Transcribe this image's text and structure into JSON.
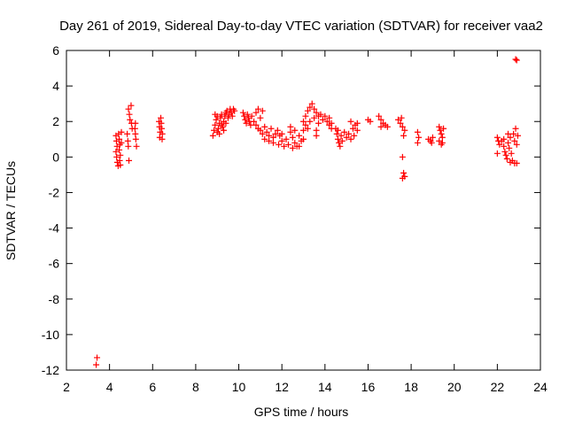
{
  "chart_data": {
    "type": "scatter",
    "title": "Day 261 of 2019, Sidereal Day-to-day VTEC variation (SDTVAR) for receiver vaa2",
    "xlabel": "GPS time / hours",
    "ylabel": "SDTVAR / TECUs",
    "xlim": [
      2,
      24
    ],
    "ylim": [
      -12,
      6
    ],
    "xticks": [
      2,
      4,
      6,
      8,
      10,
      12,
      14,
      16,
      18,
      20,
      22,
      24
    ],
    "yticks": [
      -12,
      -10,
      -8,
      -6,
      -4,
      -2,
      0,
      2,
      4,
      6
    ],
    "grid": false,
    "legend": "none",
    "marker": "plus",
    "color": "#ff0000",
    "series": [
      {
        "name": "vaa2",
        "points": [
          [
            3.42,
            -11.3
          ],
          [
            3.38,
            -11.7
          ],
          [
            4.3,
            1.2
          ],
          [
            4.32,
            0.9
          ],
          [
            4.35,
            0.6
          ],
          [
            4.3,
            0.3
          ],
          [
            4.33,
            0.0
          ],
          [
            4.36,
            -0.3
          ],
          [
            4.4,
            -0.5
          ],
          [
            4.42,
            1.3
          ],
          [
            4.45,
            1.0
          ],
          [
            4.48,
            0.7
          ],
          [
            4.45,
            0.4
          ],
          [
            4.5,
            0.1
          ],
          [
            4.47,
            -0.2
          ],
          [
            4.5,
            -0.45
          ],
          [
            4.55,
            1.4
          ],
          [
            4.55,
            0.8
          ],
          [
            4.82,
            1.3
          ],
          [
            4.85,
            0.9
          ],
          [
            4.87,
            0.6
          ],
          [
            4.9,
            -0.2
          ],
          [
            4.88,
            2.7
          ],
          [
            4.92,
            2.4
          ],
          [
            4.95,
            2.1
          ],
          [
            5.0,
            2.9
          ],
          [
            5.02,
            1.9
          ],
          [
            5.05,
            1.6
          ],
          [
            5.18,
            1.6
          ],
          [
            5.2,
            1.3
          ],
          [
            5.22,
            1.0
          ],
          [
            5.25,
            0.6
          ],
          [
            5.2,
            1.9
          ],
          [
            6.3,
            2.0
          ],
          [
            6.32,
            1.7
          ],
          [
            6.35,
            1.4
          ],
          [
            6.33,
            1.1
          ],
          [
            6.38,
            2.2
          ],
          [
            6.4,
            1.9
          ],
          [
            6.42,
            1.6
          ],
          [
            6.45,
            1.3
          ],
          [
            6.44,
            1.0
          ],
          [
            8.8,
            1.2
          ],
          [
            8.85,
            1.5
          ],
          [
            8.9,
            1.8
          ],
          [
            8.95,
            2.1
          ],
          [
            9.0,
            2.3
          ],
          [
            9.05,
            1.6
          ],
          [
            9.1,
            1.9
          ],
          [
            9.15,
            2.2
          ],
          [
            9.2,
            2.4
          ],
          [
            9.25,
            1.7
          ],
          [
            9.3,
            2.0
          ],
          [
            9.35,
            2.3
          ],
          [
            9.4,
            2.5
          ],
          [
            9.45,
            2.6
          ],
          [
            9.5,
            2.2
          ],
          [
            9.55,
            2.4
          ],
          [
            9.6,
            2.7
          ],
          [
            9.65,
            2.5
          ],
          [
            9.7,
            2.3
          ],
          [
            9.75,
            2.7
          ],
          [
            9.8,
            2.6
          ],
          [
            8.9,
            2.4
          ],
          [
            9.0,
            1.4
          ],
          [
            9.1,
            1.3
          ],
          [
            9.2,
            1.8
          ],
          [
            9.3,
            1.5
          ],
          [
            9.4,
            1.9
          ],
          [
            10.2,
            2.5
          ],
          [
            10.25,
            2.3
          ],
          [
            10.3,
            2.1
          ],
          [
            10.35,
            1.9
          ],
          [
            10.4,
            2.4
          ],
          [
            10.45,
            2.2
          ],
          [
            10.5,
            2.0
          ],
          [
            10.55,
            1.8
          ],
          [
            10.6,
            2.3
          ],
          [
            10.7,
            2.0
          ],
          [
            10.8,
            1.8
          ],
          [
            10.9,
            1.6
          ],
          [
            10.8,
            2.5
          ],
          [
            10.9,
            2.7
          ],
          [
            11.0,
            2.2
          ],
          [
            11.1,
            2.6
          ],
          [
            11.0,
            1.5
          ],
          [
            11.1,
            1.3
          ],
          [
            11.2,
            1.7
          ],
          [
            11.3,
            1.4
          ],
          [
            11.4,
            1.2
          ],
          [
            11.5,
            1.6
          ],
          [
            11.6,
            1.1
          ],
          [
            11.7,
            1.3
          ],
          [
            11.2,
            1.0
          ],
          [
            11.4,
            0.9
          ],
          [
            11.6,
            0.8
          ],
          [
            11.8,
            1.5
          ],
          [
            11.9,
            1.2
          ],
          [
            12.0,
            0.9
          ],
          [
            12.1,
            0.6
          ],
          [
            11.85,
            0.7
          ],
          [
            12.0,
            1.3
          ],
          [
            12.2,
            1.0
          ],
          [
            12.3,
            0.7
          ],
          [
            12.4,
            1.4
          ],
          [
            12.5,
            1.1
          ],
          [
            12.6,
            0.8
          ],
          [
            12.7,
            0.6
          ],
          [
            12.4,
            1.7
          ],
          [
            12.6,
            1.5
          ],
          [
            12.8,
            1.2
          ],
          [
            12.9,
            0.9
          ],
          [
            12.5,
            0.5
          ],
          [
            12.8,
            0.6
          ],
          [
            13.0,
            1.0
          ],
          [
            13.0,
            2.0
          ],
          [
            13.1,
            2.3
          ],
          [
            13.2,
            2.6
          ],
          [
            13.3,
            2.8
          ],
          [
            13.4,
            3.0
          ],
          [
            13.5,
            2.7
          ],
          [
            13.6,
            2.5
          ],
          [
            13.7,
            2.3
          ],
          [
            13.1,
            1.8
          ],
          [
            13.2,
            1.6
          ],
          [
            13.3,
            2.0
          ],
          [
            13.5,
            2.2
          ],
          [
            13.7,
            1.9
          ],
          [
            13.8,
            2.4
          ],
          [
            13.9,
            2.1
          ],
          [
            14.0,
            2.3
          ],
          [
            13.6,
            1.2
          ],
          [
            13.6,
            1.5
          ],
          [
            13.0,
            1.5
          ],
          [
            14.1,
            2.0
          ],
          [
            14.2,
            1.8
          ],
          [
            14.3,
            1.6
          ],
          [
            14.2,
            2.2
          ],
          [
            14.3,
            1.9
          ],
          [
            14.5,
            1.6
          ],
          [
            14.55,
            1.3
          ],
          [
            14.6,
            1.0
          ],
          [
            14.65,
            0.8
          ],
          [
            14.7,
            0.6
          ],
          [
            14.6,
            1.5
          ],
          [
            14.75,
            1.2
          ],
          [
            14.8,
            0.9
          ],
          [
            14.9,
            1.4
          ],
          [
            15.0,
            1.1
          ],
          [
            15.1,
            1.3
          ],
          [
            15.2,
            1.0
          ],
          [
            15.3,
            1.6
          ],
          [
            15.4,
            1.8
          ],
          [
            15.5,
            1.5
          ],
          [
            15.2,
            2.0
          ],
          [
            15.35,
            1.2
          ],
          [
            15.5,
            1.9
          ],
          [
            16.0,
            2.1
          ],
          [
            16.1,
            2.0
          ],
          [
            16.5,
            2.3
          ],
          [
            16.6,
            2.1
          ],
          [
            16.7,
            1.9
          ],
          [
            16.8,
            1.8
          ],
          [
            16.9,
            1.7
          ],
          [
            16.6,
            1.7
          ],
          [
            17.4,
            2.1
          ],
          [
            17.5,
            1.9
          ],
          [
            17.6,
            1.7
          ],
          [
            17.7,
            1.5
          ],
          [
            17.55,
            2.2
          ],
          [
            17.65,
            1.2
          ],
          [
            17.6,
            0.0
          ],
          [
            17.65,
            -0.9
          ],
          [
            17.7,
            -1.1
          ],
          [
            17.6,
            -1.2
          ],
          [
            18.3,
            1.4
          ],
          [
            18.35,
            1.1
          ],
          [
            18.3,
            0.8
          ],
          [
            18.8,
            1.0
          ],
          [
            18.9,
            0.9
          ],
          [
            19.0,
            1.1
          ],
          [
            18.95,
            0.8
          ],
          [
            19.3,
            1.7
          ],
          [
            19.35,
            1.5
          ],
          [
            19.4,
            1.3
          ],
          [
            19.45,
            1.1
          ],
          [
            19.3,
            0.9
          ],
          [
            19.4,
            0.7
          ],
          [
            19.5,
            1.6
          ],
          [
            19.45,
            0.8
          ],
          [
            22.0,
            1.1
          ],
          [
            22.05,
            0.9
          ],
          [
            22.1,
            0.7
          ],
          [
            22.0,
            0.2
          ],
          [
            22.2,
            0.9
          ],
          [
            22.3,
            0.6
          ],
          [
            22.35,
            0.3
          ],
          [
            22.4,
            0.1
          ],
          [
            22.45,
            -0.1
          ],
          [
            22.5,
            0.8
          ],
          [
            22.55,
            0.5
          ],
          [
            22.6,
            1.1
          ],
          [
            22.65,
            0.2
          ],
          [
            22.7,
            -0.2
          ],
          [
            22.75,
            1.3
          ],
          [
            22.8,
            0.9
          ],
          [
            22.85,
            1.6
          ],
          [
            22.9,
            0.7
          ],
          [
            22.95,
            1.2
          ],
          [
            22.9,
            -0.35
          ],
          [
            22.6,
            -0.3
          ],
          [
            22.8,
            -0.35
          ],
          [
            22.3,
            1.0
          ],
          [
            22.5,
            1.3
          ],
          [
            22.85,
            5.5
          ],
          [
            22.9,
            5.45
          ]
        ]
      }
    ]
  }
}
